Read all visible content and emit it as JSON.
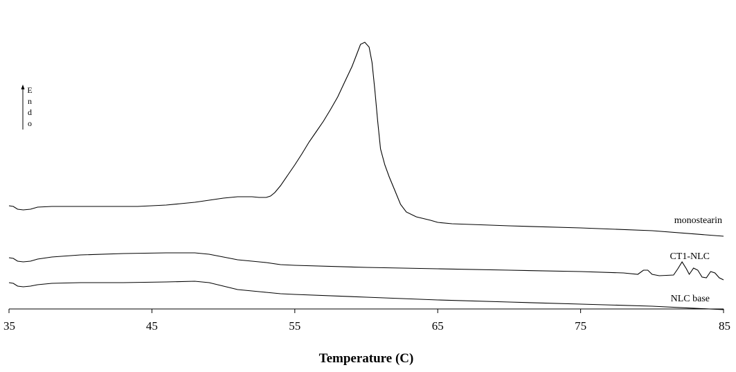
{
  "chart_data": {
    "type": "line",
    "xlabel": "Temperature (C)",
    "ylabel": "",
    "xlim": [
      35,
      85
    ],
    "xticks": [
      35,
      45,
      55,
      65,
      75,
      85
    ],
    "yaxis_ticks": false,
    "grid": false,
    "endo_indicator": {
      "letters": [
        "E",
        "n",
        "d",
        "o"
      ],
      "direction": "up"
    },
    "series": [
      {
        "name": "monostearin",
        "color": "#000000",
        "points": [
          [
            35.0,
            297
          ],
          [
            35.3,
            298
          ],
          [
            35.6,
            302
          ],
          [
            36.0,
            303
          ],
          [
            36.5,
            302
          ],
          [
            37.0,
            299
          ],
          [
            38.0,
            298
          ],
          [
            40.0,
            298
          ],
          [
            42.0,
            298
          ],
          [
            44.0,
            298
          ],
          [
            45.0,
            297
          ],
          [
            46.0,
            296
          ],
          [
            47.0,
            294
          ],
          [
            48.0,
            292
          ],
          [
            49.0,
            289
          ],
          [
            50.0,
            286
          ],
          [
            51.0,
            284
          ],
          [
            52.0,
            284
          ],
          [
            52.5,
            285
          ],
          [
            53.0,
            285
          ],
          [
            53.3,
            283
          ],
          [
            53.6,
            278
          ],
          [
            54.0,
            268
          ],
          [
            54.5,
            253
          ],
          [
            55.0,
            238
          ],
          [
            55.5,
            222
          ],
          [
            56.0,
            205
          ],
          [
            56.5,
            190
          ],
          [
            57.0,
            175
          ],
          [
            57.5,
            158
          ],
          [
            58.0,
            140
          ],
          [
            58.5,
            118
          ],
          [
            59.0,
            96
          ],
          [
            59.3,
            80
          ],
          [
            59.6,
            64
          ],
          [
            59.9,
            61
          ],
          [
            60.2,
            68
          ],
          [
            60.4,
            90
          ],
          [
            60.6,
            130
          ],
          [
            60.8,
            175
          ],
          [
            61.0,
            215
          ],
          [
            61.3,
            238
          ],
          [
            61.6,
            255
          ],
          [
            62.0,
            275
          ],
          [
            62.4,
            295
          ],
          [
            62.8,
            306
          ],
          [
            63.5,
            313
          ],
          [
            64.5,
            318
          ],
          [
            65.0,
            321
          ],
          [
            66.0,
            323
          ],
          [
            70.0,
            326
          ],
          [
            75.0,
            329
          ],
          [
            80.0,
            333
          ],
          [
            85.0,
            341
          ]
        ]
      },
      {
        "name": "CT1-NLC",
        "color": "#000000",
        "points": [
          [
            35.0,
            372
          ],
          [
            35.3,
            373
          ],
          [
            35.6,
            377
          ],
          [
            36.0,
            378
          ],
          [
            36.5,
            377
          ],
          [
            37.0,
            374
          ],
          [
            38.0,
            371
          ],
          [
            40.0,
            368
          ],
          [
            43.0,
            366
          ],
          [
            46.0,
            365
          ],
          [
            48.0,
            365
          ],
          [
            49.0,
            367
          ],
          [
            50.0,
            371
          ],
          [
            51.0,
            375
          ],
          [
            52.0,
            377
          ],
          [
            53.0,
            379
          ],
          [
            54.0,
            382
          ],
          [
            55.0,
            383
          ],
          [
            60.0,
            386
          ],
          [
            65.0,
            388
          ],
          [
            70.0,
            390
          ],
          [
            75.0,
            392
          ],
          [
            78.0,
            394
          ],
          [
            79.0,
            396
          ],
          [
            79.4,
            390
          ],
          [
            79.7,
            390
          ],
          [
            80.0,
            396
          ],
          [
            80.5,
            398
          ],
          [
            81.5,
            397
          ],
          [
            81.8,
            388
          ],
          [
            82.1,
            378
          ],
          [
            82.4,
            388
          ],
          [
            82.6,
            396
          ],
          [
            82.9,
            387
          ],
          [
            83.2,
            390
          ],
          [
            83.5,
            400
          ],
          [
            83.8,
            401
          ],
          [
            84.1,
            392
          ],
          [
            84.4,
            394
          ],
          [
            84.7,
            401
          ],
          [
            85.0,
            404
          ]
        ]
      },
      {
        "name": "NLC base",
        "color": "#000000",
        "points": [
          [
            35.0,
            408
          ],
          [
            35.3,
            409
          ],
          [
            35.6,
            413
          ],
          [
            36.0,
            414
          ],
          [
            36.5,
            413
          ],
          [
            37.0,
            411
          ],
          [
            38.0,
            409
          ],
          [
            40.0,
            408
          ],
          [
            43.0,
            408
          ],
          [
            46.0,
            407
          ],
          [
            48.0,
            406
          ],
          [
            49.0,
            408
          ],
          [
            50.0,
            413
          ],
          [
            51.0,
            418
          ],
          [
            52.0,
            420
          ],
          [
            53.0,
            422
          ],
          [
            54.0,
            424
          ],
          [
            55.0,
            425
          ],
          [
            60.0,
            429
          ],
          [
            65.0,
            433
          ],
          [
            70.0,
            436
          ],
          [
            75.0,
            439
          ],
          [
            80.0,
            442
          ],
          [
            85.0,
            447
          ]
        ]
      }
    ]
  }
}
